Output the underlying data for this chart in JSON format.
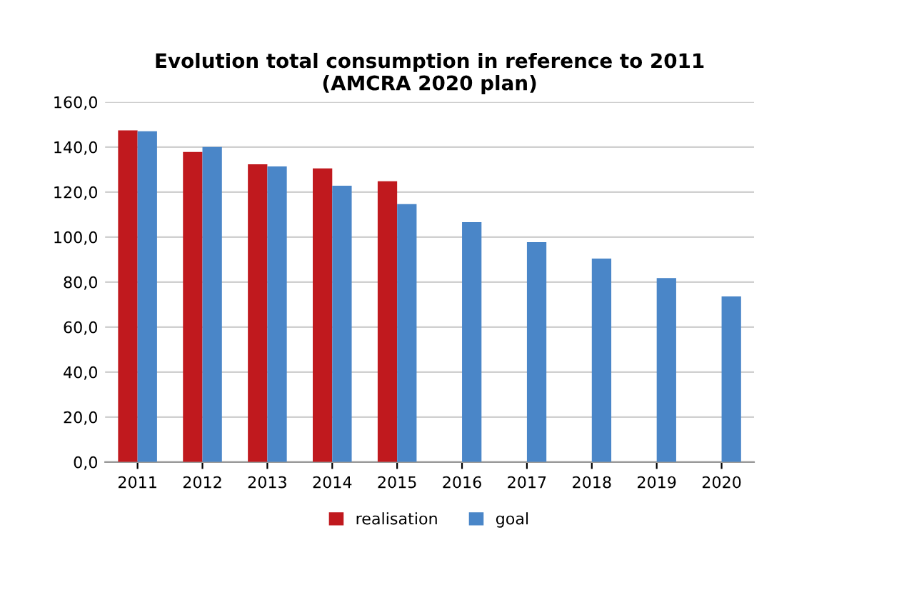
{
  "chart_data": {
    "type": "bar",
    "title": "Evolution total consumption in reference to 2011\n(AMCRA 2020 plan)",
    "categories": [
      "2011",
      "2012",
      "2013",
      "2014",
      "2015",
      "2016",
      "2017",
      "2018",
      "2019",
      "2020"
    ],
    "series": [
      {
        "name": "realisation",
        "color": "#c0191e",
        "values": [
          147.4,
          137.8,
          132.3,
          130.5,
          124.8,
          null,
          null,
          null,
          null,
          null
        ]
      },
      {
        "name": "goal",
        "color": "#4a86c8",
        "values": [
          147,
          140,
          131.4,
          122.8,
          114.6,
          106.6,
          97.7,
          90.4,
          81.8,
          73.6
        ]
      }
    ],
    "ylim": [
      0,
      160
    ],
    "yticks": [
      {
        "value": 0,
        "label": "0,0"
      },
      {
        "value": 20,
        "label": "20,0"
      },
      {
        "value": 40,
        "label": "40,0"
      },
      {
        "value": 60,
        "label": "60,0"
      },
      {
        "value": 80,
        "label": "80,0"
      },
      {
        "value": 100,
        "label": "100,0"
      },
      {
        "value": 120,
        "label": "120,0"
      },
      {
        "value": 140,
        "label": "140,0"
      },
      {
        "value": 160,
        "label": "160,0"
      }
    ],
    "grid": "y",
    "legend": "bottom"
  }
}
